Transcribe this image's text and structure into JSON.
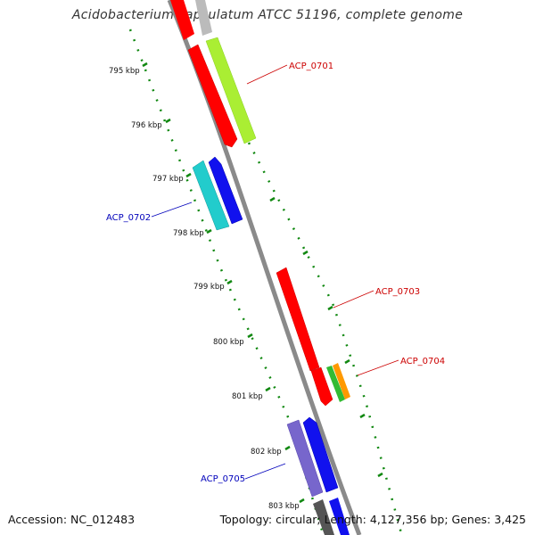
{
  "title": "Acidobacterium capsulatum ATCC 51196, complete genome",
  "footer": {
    "accession": "Accession: NC_012483",
    "summary": "Topology: circular; Length: 4,127,356 bp; Genes: 3,425"
  },
  "ticks": [
    "795 kbp",
    "796 kbp",
    "797 kbp",
    "798 kbp",
    "799 kbp",
    "800 kbp",
    "801 kbp",
    "802 kbp",
    "803 kbp"
  ],
  "gene_labels": [
    {
      "text": "ACP_0701",
      "color": "#cc0000"
    },
    {
      "text": "ACP_0702",
      "color": "#0000bb"
    },
    {
      "text": "ACP_0703",
      "color": "#cc0000"
    },
    {
      "text": "ACP_0704",
      "color": "#cc0000"
    },
    {
      "text": "ACP_0705",
      "color": "#0000bb"
    }
  ],
  "colors": {
    "backbone": "#8a8a8a",
    "ticks": "#118811",
    "red": "#ff0000",
    "lime": "#aaee33",
    "cyan": "#22cccc",
    "blue": "#1111ee",
    "purple": "#7766cc",
    "green": "#33bb33",
    "orange": "#ff9900",
    "gray": "#888888"
  }
}
